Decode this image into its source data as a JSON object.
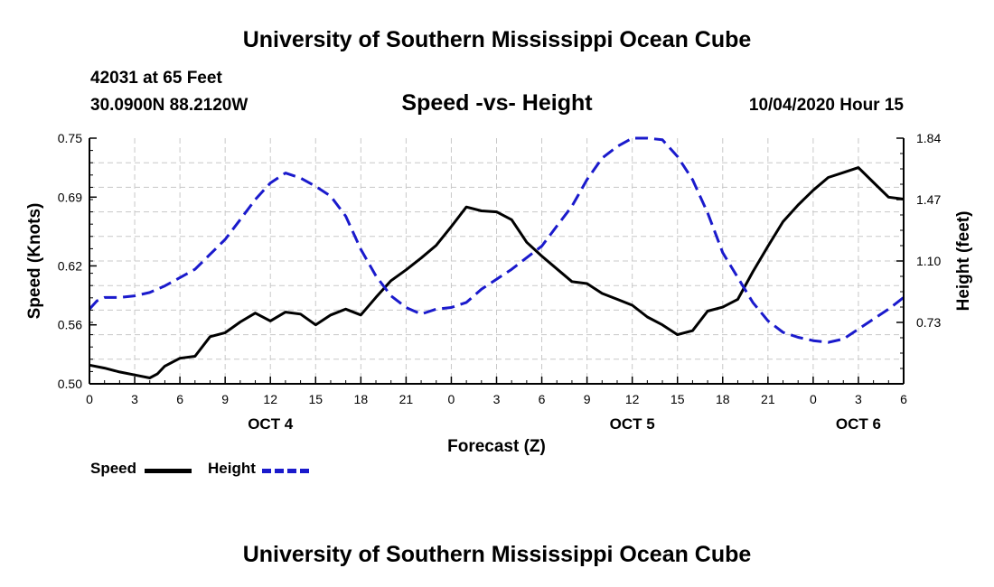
{
  "header": {
    "title_top": "University of Southern Mississippi Ocean Cube",
    "title_bottom": "University of Southern Mississippi Ocean Cube",
    "station_line": "42031 at 65 Feet",
    "coords_line": "30.0900N 88.2120W",
    "date_line": "10/04/2020 Hour 15"
  },
  "legend": {
    "speed_label": "Speed",
    "height_label": "Height",
    "speed_color": "#000000",
    "height_color": "#1a1acc"
  },
  "chart_data": {
    "type": "line",
    "title": "Speed -vs- Height",
    "xlabel": "Forecast (Z)",
    "ylabel": "Speed (Knots)",
    "y2label": "Height (feet)",
    "xlim": [
      0,
      54
    ],
    "ylim": [
      0.5,
      0.75
    ],
    "y2lim": [
      0.36,
      1.84
    ],
    "x_ticks": [
      0,
      3,
      6,
      9,
      12,
      15,
      18,
      21,
      24,
      27,
      30,
      33,
      36,
      39,
      42,
      45,
      48,
      51,
      54
    ],
    "x_tick_labels": [
      "0",
      "3",
      "6",
      "9",
      "12",
      "15",
      "18",
      "21",
      "0",
      "3",
      "6",
      "9",
      "12",
      "15",
      "18",
      "21",
      "0",
      "3",
      "6"
    ],
    "y_ticks": [
      0.5,
      0.56,
      0.62,
      0.69,
      0.75
    ],
    "y_tick_labels": [
      "0.50",
      "0.56",
      "0.62",
      "0.69",
      "0.75"
    ],
    "y2_ticks": [
      0.73,
      1.1,
      1.47,
      1.84
    ],
    "y2_tick_labels": [
      "0.73",
      "1.10",
      "1.47",
      "1.84"
    ],
    "day_labels": [
      {
        "x": 12,
        "label": "OCT 4"
      },
      {
        "x": 36,
        "label": "OCT 5"
      },
      {
        "x": 51,
        "label": "OCT 6"
      }
    ],
    "grid": true,
    "series": [
      {
        "name": "Speed",
        "axis": "left",
        "style": "solid",
        "color": "#000000",
        "x": [
          0,
          1,
          2,
          3,
          4,
          4.5,
          5,
          6,
          7,
          8,
          9,
          10,
          11,
          12,
          13,
          14,
          15,
          16,
          17,
          18,
          19,
          20,
          21,
          22,
          23,
          24,
          25,
          26,
          27,
          28,
          29,
          30,
          31,
          32,
          33,
          34,
          35,
          36,
          37,
          38,
          39,
          40,
          41,
          42,
          43,
          44,
          45,
          46,
          47,
          48,
          49,
          50,
          51,
          52,
          53,
          54
        ],
        "y": [
          0.519,
          0.516,
          0.512,
          0.509,
          0.506,
          0.51,
          0.518,
          0.526,
          0.528,
          0.548,
          0.552,
          0.563,
          0.572,
          0.564,
          0.573,
          0.571,
          0.56,
          0.57,
          0.576,
          0.57,
          0.588,
          0.605,
          0.616,
          0.628,
          0.641,
          0.66,
          0.68,
          0.676,
          0.675,
          0.667,
          0.644,
          0.63,
          0.617,
          0.604,
          0.602,
          0.592,
          0.586,
          0.58,
          0.568,
          0.56,
          0.55,
          0.554,
          0.574,
          0.578,
          0.586,
          0.614,
          0.64,
          0.665,
          0.682,
          0.697,
          0.71,
          0.715,
          0.72,
          0.705,
          0.69,
          0.688
        ]
      },
      {
        "name": "Height",
        "axis": "right",
        "style": "dashed",
        "color": "#1a1acc",
        "x": [
          0,
          0.5,
          1,
          2,
          3,
          4,
          5,
          6,
          7,
          8,
          9,
          10,
          11,
          12,
          13,
          14,
          15,
          16,
          17,
          18,
          19,
          20,
          21,
          22,
          23,
          24,
          25,
          26,
          27,
          28,
          29,
          30,
          31,
          32,
          33,
          34,
          35,
          36,
          37,
          38,
          39,
          40,
          41,
          42,
          43,
          44,
          45,
          46,
          47,
          48,
          49,
          50,
          51,
          52,
          53,
          54
        ],
        "y": [
          0.81,
          0.86,
          0.88,
          0.88,
          0.89,
          0.91,
          0.95,
          1.0,
          1.05,
          1.14,
          1.23,
          1.35,
          1.47,
          1.57,
          1.63,
          1.6,
          1.55,
          1.49,
          1.37,
          1.17,
          1.01,
          0.89,
          0.82,
          0.78,
          0.81,
          0.82,
          0.85,
          0.93,
          0.99,
          1.05,
          1.12,
          1.19,
          1.31,
          1.43,
          1.59,
          1.72,
          1.79,
          1.84,
          1.89,
          1.83,
          1.73,
          1.59,
          1.39,
          1.15,
          1.0,
          0.85,
          0.74,
          0.67,
          0.64,
          0.62,
          0.61,
          0.63,
          0.69,
          0.75,
          0.81,
          0.88
        ]
      }
    ]
  }
}
